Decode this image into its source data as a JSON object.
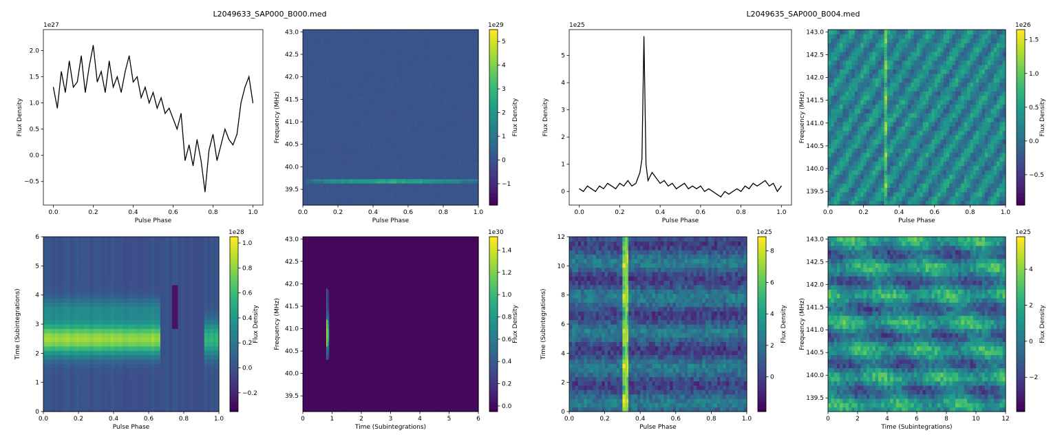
{
  "suptitles": [
    "L2049633_SAP000_B000.med",
    "L2049635_SAP000_B004.med"
  ],
  "colors": {
    "line": "#000000",
    "viridis_min": "#440154",
    "viridis_max": "#fde725"
  },
  "chart_data": [
    {
      "id": "p1",
      "type": "line",
      "group": 0,
      "xlabel": "Pulse Phase",
      "ylabel": "Flux Density",
      "xlim": [
        -0.05,
        1.05
      ],
      "ylim": [
        -0.95,
        2.4
      ],
      "scale_label": "1e27",
      "xticks": [
        0.0,
        0.2,
        0.4,
        0.6,
        0.8,
        1.0
      ],
      "xtick_labels": [
        "0.0",
        "0.2",
        "0.4",
        "0.6",
        "0.8",
        "1.0"
      ],
      "yticks": [
        -0.5,
        0.0,
        0.5,
        1.0,
        1.5,
        2.0
      ],
      "ytick_labels": [
        "−0.5",
        "0.0",
        "0.5",
        "1.0",
        "1.5",
        "2.0"
      ],
      "x": [
        0.0,
        0.02,
        0.04,
        0.06,
        0.08,
        0.1,
        0.12,
        0.14,
        0.16,
        0.18,
        0.2,
        0.22,
        0.24,
        0.26,
        0.28,
        0.3,
        0.32,
        0.34,
        0.36,
        0.38,
        0.4,
        0.42,
        0.44,
        0.46,
        0.48,
        0.5,
        0.52,
        0.54,
        0.56,
        0.58,
        0.6,
        0.62,
        0.64,
        0.66,
        0.68,
        0.7,
        0.72,
        0.74,
        0.76,
        0.78,
        0.8,
        0.82,
        0.84,
        0.86,
        0.88,
        0.9,
        0.92,
        0.94,
        0.96,
        0.98,
        1.0
      ],
      "values": [
        1.3,
        0.9,
        1.6,
        1.2,
        1.8,
        1.3,
        1.4,
        1.9,
        1.2,
        1.7,
        2.1,
        1.4,
        1.6,
        1.2,
        1.8,
        1.3,
        1.5,
        1.2,
        1.6,
        1.9,
        1.4,
        1.5,
        1.1,
        1.3,
        1.0,
        1.2,
        0.9,
        1.1,
        0.8,
        0.9,
        0.7,
        0.5,
        0.8,
        -0.1,
        0.2,
        -0.2,
        0.3,
        -0.1,
        -0.7,
        0.1,
        0.4,
        -0.1,
        0.2,
        0.5,
        0.3,
        0.2,
        0.4,
        1.0,
        1.3,
        1.5,
        1.0
      ]
    },
    {
      "id": "p2",
      "type": "heatmap",
      "group": 0,
      "xlabel": "Pulse Phase",
      "ylabel": "Frequency (MHz)",
      "cbar_label": "Flux Density",
      "xlim": [
        0,
        1
      ],
      "ylim": [
        39.15,
        43.05
      ],
      "scale_label": "1e29",
      "xticks": [
        0.0,
        0.2,
        0.4,
        0.6,
        0.8,
        1.0
      ],
      "xtick_labels": [
        "0.0",
        "0.2",
        "0.4",
        "0.6",
        "0.8",
        "1.0"
      ],
      "yticks": [
        39.5,
        40.0,
        40.5,
        41.0,
        41.5,
        42.0,
        42.5,
        43.0
      ],
      "ytick_labels": [
        "39.5",
        "40.0",
        "40.5",
        "41.0",
        "41.5",
        "42.0",
        "42.5",
        "43.0"
      ],
      "clim": [
        -1.9,
        5.5
      ],
      "cticks": [
        -1,
        0,
        1,
        2,
        3,
        4,
        5
      ],
      "ctick_labels": [
        "−1",
        "0",
        "1",
        "2",
        "3",
        "4",
        "5"
      ],
      "background": 0.0,
      "feature": "horizontal channel line near 39.7 MHz, brightest near phase 0.4"
    },
    {
      "id": "p3",
      "type": "line",
      "group": 1,
      "xlabel": "Pulse Phase",
      "ylabel": "Flux Density",
      "xlim": [
        -0.05,
        1.05
      ],
      "ylim": [
        -0.5,
        5.95
      ],
      "scale_label": "1e25",
      "xticks": [
        0.0,
        0.2,
        0.4,
        0.6,
        0.8,
        1.0
      ],
      "xtick_labels": [
        "0.0",
        "0.2",
        "0.4",
        "0.6",
        "0.8",
        "1.0"
      ],
      "yticks": [
        0,
        1,
        2,
        3,
        4,
        5
      ],
      "ytick_labels": [
        "0",
        "1",
        "2",
        "3",
        "4",
        "5"
      ],
      "x": [
        0.0,
        0.02,
        0.04,
        0.06,
        0.08,
        0.1,
        0.12,
        0.14,
        0.16,
        0.18,
        0.2,
        0.22,
        0.24,
        0.26,
        0.28,
        0.3,
        0.31,
        0.32,
        0.33,
        0.34,
        0.36,
        0.38,
        0.4,
        0.42,
        0.44,
        0.46,
        0.48,
        0.5,
        0.52,
        0.54,
        0.56,
        0.58,
        0.6,
        0.62,
        0.64,
        0.66,
        0.68,
        0.7,
        0.72,
        0.74,
        0.76,
        0.78,
        0.8,
        0.82,
        0.84,
        0.86,
        0.88,
        0.9,
        0.92,
        0.94,
        0.96,
        0.98,
        1.0
      ],
      "values": [
        0.1,
        0.0,
        0.2,
        0.1,
        0.0,
        0.2,
        0.1,
        0.3,
        0.2,
        0.1,
        0.3,
        0.2,
        0.4,
        0.2,
        0.3,
        0.7,
        1.2,
        5.7,
        1.0,
        0.4,
        0.7,
        0.5,
        0.3,
        0.4,
        0.2,
        0.3,
        0.1,
        0.2,
        0.3,
        0.1,
        0.2,
        0.1,
        0.2,
        0.0,
        0.1,
        0.0,
        -0.1,
        -0.2,
        0.0,
        -0.1,
        0.0,
        0.1,
        0.0,
        0.2,
        0.1,
        0.3,
        0.2,
        0.3,
        0.4,
        0.2,
        0.3,
        0.0,
        0.2
      ]
    },
    {
      "id": "p4",
      "type": "heatmap",
      "group": 1,
      "xlabel": "Pulse Phase",
      "ylabel": "Frequency (MHz)",
      "cbar_label": "Flux Density",
      "xlim": [
        0,
        1
      ],
      "ylim": [
        139.2,
        143.05
      ],
      "scale_label": "1e26",
      "xticks": [
        0.0,
        0.2,
        0.4,
        0.6,
        0.8,
        1.0
      ],
      "xtick_labels": [
        "0.0",
        "0.2",
        "0.4",
        "0.6",
        "0.8",
        "1.0"
      ],
      "yticks": [
        139.5,
        140.0,
        140.5,
        141.0,
        141.5,
        142.0,
        142.5,
        143.0
      ],
      "ytick_labels": [
        "139.5",
        "140.0",
        "140.5",
        "141.0",
        "141.5",
        "142.0",
        "142.5",
        "143.0"
      ],
      "clim": [
        -0.95,
        1.65
      ],
      "cticks": [
        -0.5,
        0.0,
        0.5,
        1.0,
        1.5
      ],
      "ctick_labels": [
        "−0.5",
        "0.0",
        "0.5",
        "1.0",
        "1.5"
      ],
      "feature": "diagonal stripes with pulse at phase 0.32"
    },
    {
      "id": "p5",
      "type": "heatmap",
      "group": 0,
      "xlabel": "Pulse Phase",
      "ylabel": "Time (Subintegrations)",
      "cbar_label": "Flux Density",
      "xlim": [
        0,
        1
      ],
      "ylim": [
        0,
        6
      ],
      "scale_label": "1e28",
      "xticks": [
        0.0,
        0.2,
        0.4,
        0.6,
        0.8,
        1.0
      ],
      "xtick_labels": [
        "0.0",
        "0.2",
        "0.4",
        "0.6",
        "0.8",
        "1.0"
      ],
      "yticks": [
        0,
        1,
        2,
        3,
        4,
        5,
        6
      ],
      "ytick_labels": [
        "0",
        "1",
        "2",
        "3",
        "4",
        "5",
        "6"
      ],
      "clim": [
        -0.35,
        1.05
      ],
      "cticks": [
        -0.2,
        0.0,
        0.2,
        0.4,
        0.6,
        0.8,
        1.0
      ],
      "ctick_labels": [
        "−0.2",
        "0.0",
        "0.2",
        "0.4",
        "0.6",
        "0.8",
        "1.0"
      ],
      "feature": "bright band near subintegration 2.5 for phase < 0.66"
    },
    {
      "id": "p6",
      "type": "heatmap",
      "group": 0,
      "xlabel": "Time (Subintegrations)",
      "ylabel": "Frequency (MHz)",
      "cbar_label": "Flux Density",
      "xlim": [
        0,
        6
      ],
      "ylim": [
        39.15,
        43.05
      ],
      "scale_label": "1e30",
      "xticks": [
        0,
        1,
        2,
        3,
        4,
        5,
        6
      ],
      "xtick_labels": [
        "0",
        "1",
        "2",
        "3",
        "4",
        "5",
        "6"
      ],
      "yticks": [
        39.5,
        40.0,
        40.5,
        41.0,
        41.5,
        42.0,
        42.5,
        43.0
      ],
      "ytick_labels": [
        "39.5",
        "40.0",
        "40.5",
        "41.0",
        "41.5",
        "42.0",
        "42.5",
        "43.0"
      ],
      "clim": [
        -0.05,
        1.52
      ],
      "cticks": [
        0.0,
        0.2,
        0.4,
        0.6,
        0.8,
        1.0,
        1.2,
        1.4
      ],
      "ctick_labels": [
        "0.0",
        "0.2",
        "0.4",
        "0.6",
        "0.8",
        "1.0",
        "1.2",
        "1.4"
      ],
      "feature": "narrow streak at subintegration 0.8 between 40.3 and 41.9 MHz"
    },
    {
      "id": "p7",
      "type": "heatmap",
      "group": 1,
      "xlabel": "Pulse Phase",
      "ylabel": "Time (Subintegrations)",
      "cbar_label": "Flux Density",
      "xlim": [
        0,
        1
      ],
      "ylim": [
        0,
        12
      ],
      "scale_label": "1e25",
      "xticks": [
        0.0,
        0.2,
        0.4,
        0.6,
        0.8,
        1.0
      ],
      "xtick_labels": [
        "0.0",
        "0.2",
        "0.4",
        "0.6",
        "0.8",
        "1.0"
      ],
      "yticks": [
        0,
        2,
        4,
        6,
        8,
        10,
        12
      ],
      "ytick_labels": [
        "0",
        "2",
        "4",
        "6",
        "8",
        "10",
        "12"
      ],
      "clim": [
        -2.2,
        8.9
      ],
      "cticks": [
        0,
        2,
        4,
        6,
        8
      ],
      "ctick_labels": [
        "0",
        "2",
        "4",
        "6",
        "8"
      ],
      "feature": "vertical pulse at phase 0.32 across all subintegrations"
    },
    {
      "id": "p8",
      "type": "heatmap",
      "group": 1,
      "xlabel": "Time (Subintegrations)",
      "ylabel": "Frequency (MHz)",
      "cbar_label": "Flux Density",
      "xlim": [
        0,
        12
      ],
      "ylim": [
        139.2,
        143.05
      ],
      "scale_label": "1e25",
      "xticks": [
        0,
        2,
        4,
        6,
        8,
        10,
        12
      ],
      "xtick_labels": [
        "0",
        "2",
        "4",
        "6",
        "8",
        "10",
        "12"
      ],
      "yticks": [
        139.5,
        140.0,
        140.5,
        141.0,
        141.5,
        142.0,
        142.5,
        143.0
      ],
      "ytick_labels": [
        "139.5",
        "140.0",
        "140.5",
        "141.0",
        "141.5",
        "142.0",
        "142.5",
        "143.0"
      ],
      "clim": [
        -3.9,
        5.8
      ],
      "cticks": [
        -2,
        0,
        2,
        4
      ],
      "ctick_labels": [
        "−2",
        "0",
        "2",
        "4"
      ],
      "feature": "noisy scintillation pattern"
    }
  ]
}
